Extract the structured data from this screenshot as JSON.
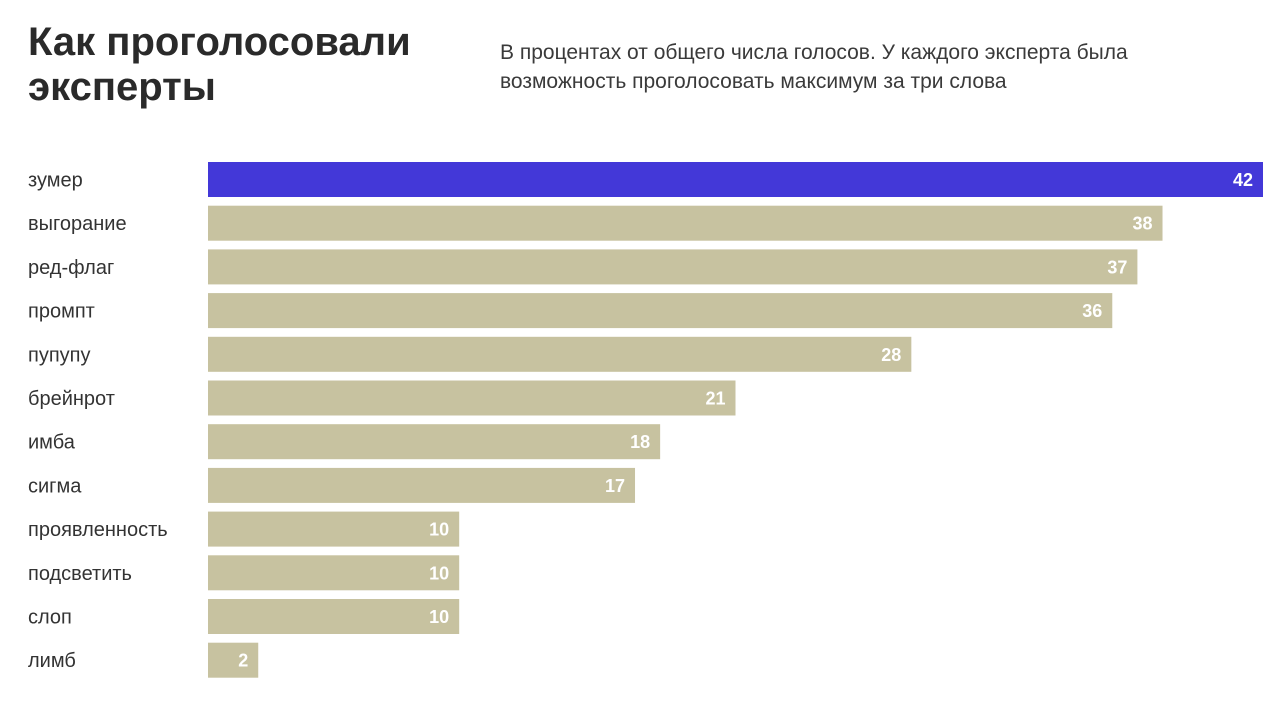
{
  "header": {
    "title": "Как проголосовали эксперты",
    "subtitle": "В процентах от общего числа голосов. У каждого эксперта была возможность проголосовать максимум за три слова"
  },
  "colors": {
    "highlight": "#4338d8",
    "bar": "#c7c2a0",
    "value_text": "#ffffff",
    "label_text": "#333333"
  },
  "chart_data": {
    "type": "bar",
    "orientation": "horizontal",
    "title": "Как проголосовали эксперты",
    "subtitle": "В процентах от общего числа голосов. У каждого эксперта была возможность проголосовать максимум за три слова",
    "categories": [
      "зумер",
      "выгорание",
      "ред-флаг",
      "промпт",
      "пупупу",
      "брейнрот",
      "имба",
      "сигма",
      "проявленность",
      "подсветить",
      "слоп",
      "лимб"
    ],
    "values": [
      42,
      38,
      37,
      36,
      28,
      21,
      18,
      17,
      10,
      10,
      10,
      2
    ],
    "value_labels": [
      "42",
      "38",
      "37",
      "36",
      "28",
      "21",
      "18",
      "17",
      "10",
      "10",
      "10",
      "2"
    ],
    "highlighted_index": 0,
    "xlim": [
      0,
      42
    ],
    "grid": false,
    "legend": false
  }
}
